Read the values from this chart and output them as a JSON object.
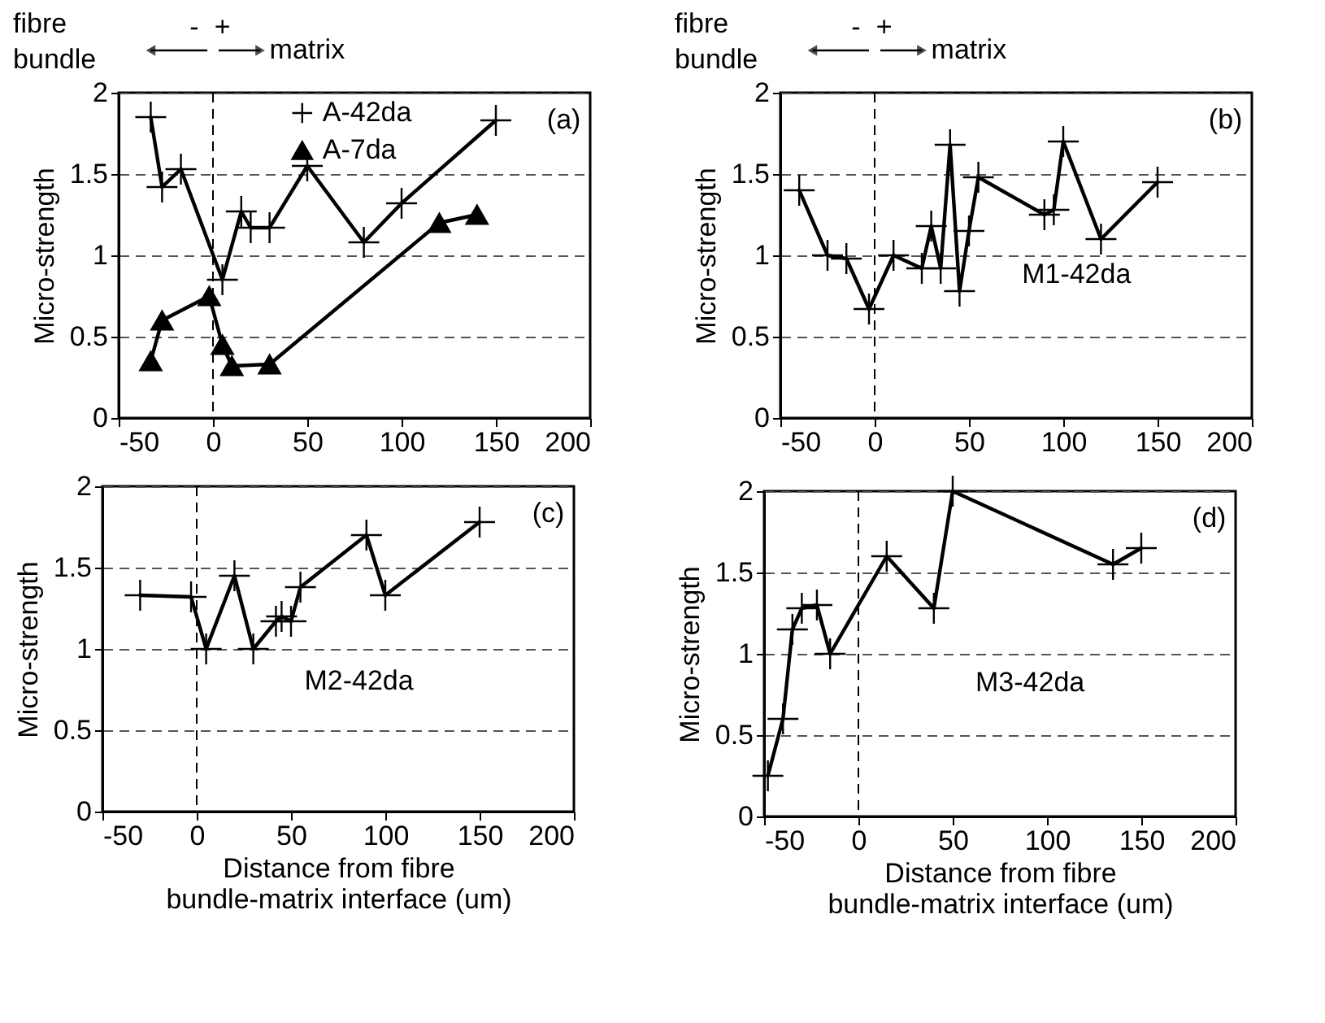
{
  "chart_data": [
    {
      "type": "line",
      "ylabel": "Micro-strength",
      "xlim": [
        -50,
        200
      ],
      "xticks": [
        -50,
        0,
        50,
        100,
        150,
        200
      ],
      "ylim": [
        0,
        2
      ],
      "yticks": [
        0,
        0.5,
        1,
        1.5,
        2
      ],
      "grid": "y",
      "legend": "top",
      "line_style": "solid",
      "annotations": [
        "(a)",
        "fibre bundle",
        "-",
        "+",
        "matrix"
      ],
      "ref_lines": [
        {
          "axis": "x",
          "value": 0,
          "line_style": "dashed"
        }
      ],
      "series": [
        {
          "name": "A-42da",
          "color": "#000000",
          "marker": "cross",
          "x": [
            -33,
            -27,
            -17,
            5,
            15,
            20,
            30,
            50,
            80,
            100,
            150
          ],
          "values": [
            1.85,
            1.42,
            1.53,
            0.85,
            1.27,
            1.17,
            1.17,
            1.55,
            1.08,
            1.32,
            1.83
          ]
        },
        {
          "name": "A-7da",
          "color": "#000000",
          "marker": "triangle",
          "x": [
            -33,
            -27,
            -2,
            5,
            10,
            30,
            120,
            140
          ],
          "values": [
            0.35,
            0.6,
            0.75,
            0.45,
            0.32,
            0.33,
            1.2,
            1.25
          ]
        }
      ]
    },
    {
      "type": "line",
      "ylabel": "Micro-strength",
      "xlim": [
        -50,
        200
      ],
      "xticks": [
        -50,
        0,
        50,
        100,
        150,
        200
      ],
      "ylim": [
        0,
        2
      ],
      "yticks": [
        0,
        0.5,
        1,
        1.5,
        2
      ],
      "grid": "y",
      "marker": "cross",
      "line_style": "solid",
      "annotations": [
        "(b)",
        "M1-42da",
        "fibre bundle",
        "-",
        "+",
        "matrix"
      ],
      "ref_lines": [
        {
          "axis": "x",
          "value": 0,
          "line_style": "dashed"
        }
      ],
      "series": [
        {
          "color": "#000000",
          "x": [
            -40,
            -25,
            -15,
            -3,
            10,
            25,
            30,
            35,
            40,
            45,
            50,
            55,
            90,
            95,
            100,
            120,
            150
          ],
          "values": [
            1.4,
            1.0,
            0.98,
            0.67,
            1.0,
            0.92,
            1.18,
            0.92,
            1.68,
            0.78,
            1.15,
            1.48,
            1.25,
            1.28,
            1.7,
            1.1,
            1.45
          ]
        }
      ]
    },
    {
      "type": "line",
      "xlabel": "Distance from fibre bundle-matrix interface (um)",
      "ylabel": "Micro-strength",
      "xlim": [
        -50,
        200
      ],
      "xticks": [
        -50,
        0,
        50,
        100,
        150,
        200
      ],
      "ylim": [
        0,
        2
      ],
      "yticks": [
        0,
        0.5,
        1,
        1.5,
        2
      ],
      "grid": "y",
      "marker": "cross",
      "line_style": "solid",
      "annotations": [
        "(c)",
        "M2-42da"
      ],
      "ref_lines": [
        {
          "axis": "x",
          "value": 0,
          "line_style": "dashed"
        }
      ],
      "series": [
        {
          "color": "#000000",
          "x": [
            -30,
            -3,
            5,
            20,
            30,
            42,
            45,
            50,
            55,
            90,
            100,
            150
          ],
          "values": [
            1.33,
            1.32,
            1.0,
            1.45,
            1.0,
            1.17,
            1.2,
            1.17,
            1.38,
            1.7,
            1.33,
            1.78
          ]
        }
      ]
    },
    {
      "type": "line",
      "xlabel": "Distance from fibre bundle-matrix interface (um)",
      "ylabel": "Micro-strength",
      "xlim": [
        -50,
        200
      ],
      "xticks": [
        -50,
        0,
        50,
        100,
        150,
        200
      ],
      "ylim": [
        0,
        2
      ],
      "yticks": [
        0,
        0.5,
        1,
        1.5,
        2
      ],
      "grid": "y",
      "marker": "cross",
      "line_style": "solid",
      "annotations": [
        "(d)",
        "M3-42da"
      ],
      "ref_lines": [
        {
          "axis": "x",
          "value": 0,
          "line_style": "dashed"
        }
      ],
      "series": [
        {
          "color": "#000000",
          "x": [
            -48,
            -40,
            -35,
            -30,
            -22,
            -15,
            15,
            40,
            50,
            135,
            150
          ],
          "values": [
            0.25,
            0.6,
            1.15,
            1.28,
            1.3,
            1.0,
            1.6,
            1.28,
            2.0,
            1.55,
            1.65
          ]
        }
      ]
    }
  ]
}
